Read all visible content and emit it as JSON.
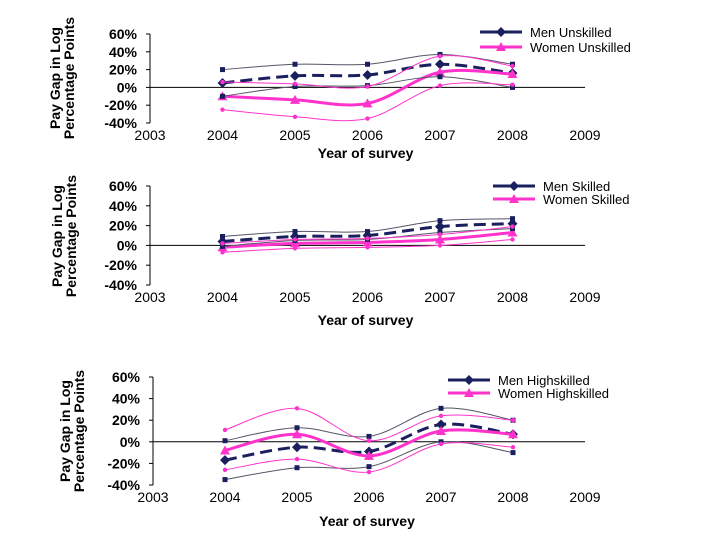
{
  "colors": {
    "men": "#1a1f5e",
    "women": "#ff33cc",
    "ci_men": "#555566",
    "ci_women": "#ff33cc",
    "axis": "#000000"
  },
  "chart_data": [
    {
      "type": "line",
      "panel": "unskilled",
      "xlabel": "Year of survey",
      "ylabel": [
        "Pay Gap in Log",
        "Percentage Points"
      ],
      "xlim": [
        2003,
        2009
      ],
      "ylim": [
        -0.4,
        0.6
      ],
      "xticks": [
        2003,
        2004,
        2005,
        2006,
        2007,
        2008,
        2009
      ],
      "xtick_labels": [
        "2003",
        "2004",
        "2005",
        "2006",
        "2007",
        "2008",
        "2009"
      ],
      "yticks": [
        -0.4,
        -0.2,
        0,
        0.2,
        0.4,
        0.6
      ],
      "ytick_labels": [
        "-40%",
        "-20%",
        "0%",
        "20%",
        "40%",
        "60%"
      ],
      "x": [
        2004,
        2005,
        2006,
        2007,
        2008
      ],
      "legend": {
        "position": "top-right",
        "entries": [
          "Men Unskilled",
          "Women Unskilled"
        ]
      },
      "series": [
        {
          "name": "Men Unskilled",
          "role": "estimate",
          "values": [
            0.05,
            0.13,
            0.14,
            0.26,
            0.16
          ]
        },
        {
          "name": "Women Unskilled",
          "role": "estimate",
          "values": [
            -0.1,
            -0.14,
            -0.18,
            0.17,
            0.15
          ]
        },
        {
          "name": "Men Unskilled upper",
          "role": "ci_men",
          "values": [
            0.2,
            0.26,
            0.26,
            0.37,
            0.26
          ]
        },
        {
          "name": "Men Unskilled lower",
          "role": "ci_men",
          "values": [
            -0.1,
            0.01,
            0.02,
            0.12,
            0.0
          ]
        },
        {
          "name": "Women Unskilled upper",
          "role": "ci_women",
          "values": [
            0.06,
            0.04,
            0.01,
            0.35,
            0.24
          ]
        },
        {
          "name": "Women Unskilled lower",
          "role": "ci_women",
          "values": [
            -0.25,
            -0.33,
            -0.35,
            0.02,
            0.03
          ]
        }
      ]
    },
    {
      "type": "line",
      "panel": "skilled",
      "xlabel": "Year of survey",
      "ylabel": [
        "Pay Gap in Log",
        "Percentage Points"
      ],
      "xlim": [
        2003,
        2009
      ],
      "ylim": [
        -0.4,
        0.6
      ],
      "xticks": [
        2003,
        2004,
        2005,
        2006,
        2007,
        2008,
        2009
      ],
      "xtick_labels": [
        "2003",
        "2004",
        "2005",
        "2006",
        "2007",
        "2008",
        "2009"
      ],
      "yticks": [
        -0.4,
        -0.2,
        0,
        0.2,
        0.4,
        0.6
      ],
      "ytick_labels": [
        "-40%",
        "-20%",
        "0%",
        "20%",
        "40%",
        "60%"
      ],
      "x": [
        2004,
        2005,
        2006,
        2007,
        2008
      ],
      "legend": {
        "position": "top-right",
        "entries": [
          "Men Skilled",
          "Women Skilled"
        ]
      },
      "series": [
        {
          "name": "Men Skilled",
          "role": "estimate",
          "values": [
            0.04,
            0.09,
            0.1,
            0.19,
            0.22
          ]
        },
        {
          "name": "Women Skilled",
          "role": "estimate",
          "values": [
            -0.02,
            0.02,
            0.03,
            0.06,
            0.13
          ]
        },
        {
          "name": "Men Skilled upper",
          "role": "ci_men",
          "values": [
            0.09,
            0.14,
            0.14,
            0.25,
            0.27
          ]
        },
        {
          "name": "Men Skilled lower",
          "role": "ci_men",
          "values": [
            -0.01,
            0.05,
            0.06,
            0.13,
            0.17
          ]
        },
        {
          "name": "Women Skilled upper",
          "role": "ci_women",
          "values": [
            0.02,
            0.06,
            0.07,
            0.11,
            0.19
          ]
        },
        {
          "name": "Women Skilled lower",
          "role": "ci_women",
          "values": [
            -0.07,
            -0.03,
            -0.02,
            0.0,
            0.06
          ]
        }
      ]
    },
    {
      "type": "line",
      "panel": "highskilled",
      "xlabel": "Year of survey",
      "ylabel": [
        "Pay Gap in Log",
        "Percentage Points"
      ],
      "xlim": [
        2003,
        2009
      ],
      "ylim": [
        -0.4,
        0.6
      ],
      "xticks": [
        2003,
        2004,
        2005,
        2006,
        2007,
        2008,
        2009
      ],
      "xtick_labels": [
        "2003",
        "2004",
        "2005",
        "2006",
        "2007",
        "2008",
        "2009"
      ],
      "yticks": [
        -0.4,
        -0.2,
        0,
        0.2,
        0.4,
        0.6
      ],
      "ytick_labels": [
        "-40%",
        "-20%",
        "0%",
        "20%",
        "40%",
        "60%"
      ],
      "x": [
        2004,
        2005,
        2006,
        2007,
        2008
      ],
      "legend": {
        "position": "top-right",
        "entries": [
          "Men Highskilled",
          "Women Highskilled"
        ]
      },
      "series": [
        {
          "name": "Men Highskilled",
          "role": "estimate",
          "values": [
            -0.17,
            -0.05,
            -0.09,
            0.16,
            0.07
          ]
        },
        {
          "name": "Women Highskilled",
          "role": "estimate",
          "values": [
            -0.08,
            0.07,
            -0.13,
            0.1,
            0.07
          ]
        },
        {
          "name": "Men Highskilled upper",
          "role": "ci_men",
          "values": [
            0.01,
            0.13,
            0.05,
            0.31,
            0.2
          ]
        },
        {
          "name": "Men Highskilled lower",
          "role": "ci_men",
          "values": [
            -0.35,
            -0.24,
            -0.23,
            0.0,
            -0.1
          ]
        },
        {
          "name": "Women Highskilled upper",
          "role": "ci_women",
          "values": [
            0.11,
            0.31,
            0.01,
            0.24,
            0.2
          ]
        },
        {
          "name": "Women Highskilled lower",
          "role": "ci_women",
          "values": [
            -0.26,
            -0.16,
            -0.28,
            -0.02,
            -0.05
          ]
        }
      ]
    }
  ]
}
